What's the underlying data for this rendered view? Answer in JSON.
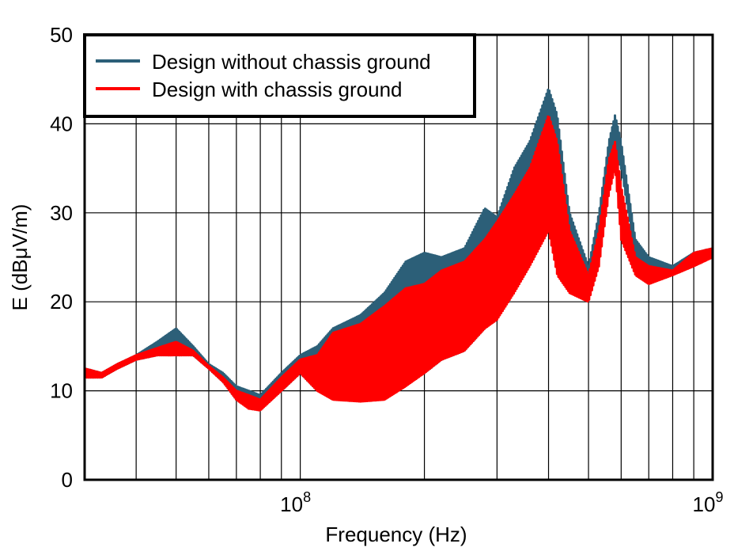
{
  "chart_data": {
    "type": "line",
    "title": "",
    "xlabel": "Frequency (Hz)",
    "ylabel": "E (dBμV/m)",
    "xscale": "log",
    "xlim": [
      30000000,
      1000000000
    ],
    "ylim": [
      0,
      50
    ],
    "grid": true,
    "legend_position": "top-left",
    "x_ticks": [
      {
        "base": "10",
        "exp": "8",
        "value": 100000000
      },
      {
        "base": "10",
        "exp": "9",
        "value": 1000000000
      }
    ],
    "y_ticks": [
      "0",
      "10",
      "20",
      "30",
      "40",
      "50"
    ],
    "x": [
      30000000,
      33000000,
      36000000,
      40000000,
      45000000,
      50000000,
      55000000,
      60000000,
      65000000,
      70000000,
      75000000,
      80000000,
      90000000,
      100000000,
      110000000,
      120000000,
      140000000,
      160000000,
      180000000,
      200000000,
      220000000,
      250000000,
      280000000,
      300000000,
      330000000,
      360000000,
      400000000,
      420000000,
      450000000,
      500000000,
      530000000,
      560000000,
      580000000,
      600000000,
      650000000,
      700000000,
      800000000,
      900000000,
      1000000000
    ],
    "series": [
      {
        "name": "Design without chassis ground",
        "color": "#2c5f78",
        "upper": [
          12.5,
          12,
          13,
          14,
          15.5,
          17,
          15,
          13,
          12,
          10.5,
          10,
          9.5,
          12,
          14,
          15,
          17,
          18.5,
          21,
          24.5,
          25.5,
          25,
          26,
          30.5,
          29.5,
          35,
          38,
          44,
          41,
          30,
          24,
          30,
          38,
          41,
          38,
          27,
          25,
          24,
          25.5,
          26
        ],
        "lower": [
          11.5,
          11.5,
          12.5,
          13.5,
          14,
          14,
          14,
          12.5,
          11,
          9,
          8.5,
          8,
          10,
          12,
          10,
          9.5,
          9,
          9.5,
          11,
          12,
          13.5,
          14.5,
          17,
          18.5,
          22,
          25,
          28,
          30,
          24,
          21,
          25,
          33,
          37,
          35,
          25,
          23,
          23,
          24.5,
          25
        ]
      },
      {
        "name": "Design with chassis ground",
        "color": "#ff0000",
        "upper": [
          12.5,
          12,
          13,
          14,
          14.8,
          15.5,
          14.5,
          12.8,
          11.5,
          10,
          9.5,
          9,
          11.5,
          13.5,
          14,
          16.5,
          17.5,
          19.5,
          21.5,
          22,
          23.5,
          24.5,
          27,
          29,
          32,
          35,
          41,
          38,
          28,
          23,
          28,
          36,
          38,
          33,
          25,
          24,
          23.5,
          25.5,
          26
        ],
        "lower": [
          11.5,
          11.5,
          12.5,
          13.5,
          14,
          14,
          14,
          12.5,
          11,
          9,
          8,
          7.8,
          10,
          12,
          10,
          9,
          8.8,
          9,
          10.5,
          12,
          13.5,
          14.5,
          17,
          18,
          21,
          24,
          28,
          23,
          21,
          20,
          24,
          32,
          35,
          27,
          23,
          22,
          23,
          24,
          25
        ]
      }
    ]
  }
}
